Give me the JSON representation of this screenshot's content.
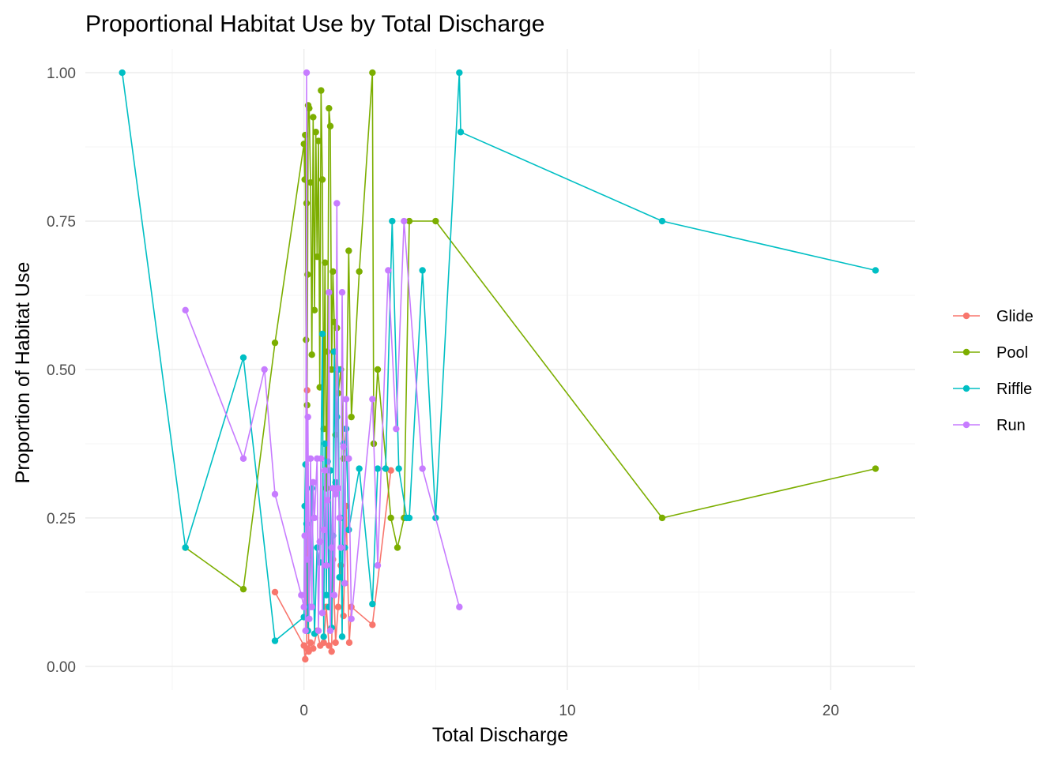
{
  "chart_data": {
    "type": "line",
    "title": "Proportional Habitat Use by Total Discharge",
    "xlabel": "Total Discharge",
    "ylabel": "Proportion of Habitat Use",
    "xlim": [
      -8.3,
      23.2
    ],
    "ylim": [
      -0.04,
      1.04
    ],
    "x_ticks": [
      0,
      10,
      20
    ],
    "x_minor_ticks": [
      -5,
      5,
      15
    ],
    "y_ticks": [
      0,
      0.25,
      0.5,
      0.75,
      1.0
    ],
    "y_tick_labels": [
      "0.00",
      "0.25",
      "0.50",
      "0.75",
      "1.00"
    ],
    "y_minor_ticks": [
      0.125,
      0.375,
      0.625,
      0.875
    ],
    "grid": true,
    "legend_position": "right",
    "series": [
      {
        "name": "Glide",
        "color": "#F8766D",
        "points": [
          [
            -1.1,
            0.125
          ],
          [
            0.0,
            0.035
          ],
          [
            0.05,
            0.012
          ],
          [
            0.1,
            0.03
          ],
          [
            0.12,
            0.465
          ],
          [
            0.18,
            0.025
          ],
          [
            0.25,
            0.04
          ],
          [
            0.35,
            0.03
          ],
          [
            0.5,
            0.06
          ],
          [
            0.62,
            0.035
          ],
          [
            0.75,
            0.04
          ],
          [
            0.85,
            0.1
          ],
          [
            0.95,
            0.035
          ],
          [
            1.05,
            0.025
          ],
          [
            1.1,
            0.18
          ],
          [
            1.2,
            0.04
          ],
          [
            1.3,
            0.1
          ],
          [
            1.4,
            0.17
          ],
          [
            1.5,
            0.085
          ],
          [
            1.6,
            0.27
          ],
          [
            1.72,
            0.04
          ],
          [
            1.8,
            0.1
          ],
          [
            2.6,
            0.07
          ],
          [
            3.3,
            0.33
          ]
        ]
      },
      {
        "name": "Pool",
        "color": "#7CAE00",
        "points": [
          [
            -4.5,
            0.2
          ],
          [
            -2.3,
            0.13
          ],
          [
            -1.1,
            0.545
          ],
          [
            0.0,
            0.88
          ],
          [
            0.03,
            0.82
          ],
          [
            0.05,
            0.895
          ],
          [
            0.08,
            0.55
          ],
          [
            0.1,
            0.78
          ],
          [
            0.12,
            0.44
          ],
          [
            0.14,
            0.66
          ],
          [
            0.16,
            0.945
          ],
          [
            0.2,
            0.94
          ],
          [
            0.25,
            0.815
          ],
          [
            0.3,
            0.525
          ],
          [
            0.35,
            0.925
          ],
          [
            0.4,
            0.6
          ],
          [
            0.45,
            0.9
          ],
          [
            0.5,
            0.69
          ],
          [
            0.55,
            0.885
          ],
          [
            0.6,
            0.47
          ],
          [
            0.65,
            0.97
          ],
          [
            0.7,
            0.82
          ],
          [
            0.75,
            0.4
          ],
          [
            0.8,
            0.68
          ],
          [
            0.85,
            0.3
          ],
          [
            0.9,
            0.53
          ],
          [
            0.95,
            0.94
          ],
          [
            1.0,
            0.91
          ],
          [
            1.05,
            0.5
          ],
          [
            1.1,
            0.665
          ],
          [
            1.15,
            0.58
          ],
          [
            1.2,
            0.39
          ],
          [
            1.25,
            0.57
          ],
          [
            1.3,
            0.46
          ],
          [
            1.4,
            0.5
          ],
          [
            1.5,
            0.35
          ],
          [
            1.6,
            0.4
          ],
          [
            1.7,
            0.7
          ],
          [
            1.8,
            0.42
          ],
          [
            2.1,
            0.665
          ],
          [
            2.6,
            1.0
          ],
          [
            2.65,
            0.375
          ],
          [
            2.8,
            0.5
          ],
          [
            3.3,
            0.25
          ],
          [
            3.55,
            0.2
          ],
          [
            3.8,
            0.25
          ],
          [
            4.0,
            0.75
          ],
          [
            5.0,
            0.75
          ],
          [
            13.6,
            0.25
          ],
          [
            21.7,
            0.333
          ]
        ]
      },
      {
        "name": "Riffle",
        "color": "#00BFC4",
        "points": [
          [
            -6.9,
            1.0
          ],
          [
            -4.5,
            0.2
          ],
          [
            -2.3,
            0.52
          ],
          [
            -1.1,
            0.043
          ],
          [
            0.0,
            0.083
          ],
          [
            0.03,
            0.27
          ],
          [
            0.06,
            0.34
          ],
          [
            0.1,
            0.24
          ],
          [
            0.15,
            0.06
          ],
          [
            0.2,
            0.1
          ],
          [
            0.3,
            0.3
          ],
          [
            0.4,
            0.055
          ],
          [
            0.5,
            0.2
          ],
          [
            0.6,
            0.175
          ],
          [
            0.7,
            0.56
          ],
          [
            0.75,
            0.05
          ],
          [
            0.8,
            0.375
          ],
          [
            0.85,
            0.12
          ],
          [
            0.9,
            0.345
          ],
          [
            0.95,
            0.1
          ],
          [
            1.0,
            0.33
          ],
          [
            1.05,
            0.065
          ],
          [
            1.1,
            0.22
          ],
          [
            1.15,
            0.53
          ],
          [
            1.2,
            0.31
          ],
          [
            1.25,
            0.42
          ],
          [
            1.3,
            0.5
          ],
          [
            1.35,
            0.15
          ],
          [
            1.4,
            0.25
          ],
          [
            1.45,
            0.05
          ],
          [
            1.5,
            0.375
          ],
          [
            1.55,
            0.2
          ],
          [
            1.6,
            0.4
          ],
          [
            1.7,
            0.23
          ],
          [
            2.1,
            0.333
          ],
          [
            2.6,
            0.105
          ],
          [
            2.8,
            0.333
          ],
          [
            3.1,
            0.333
          ],
          [
            3.35,
            0.75
          ],
          [
            3.6,
            0.333
          ],
          [
            3.9,
            0.25
          ],
          [
            4.0,
            0.25
          ],
          [
            4.5,
            0.667
          ],
          [
            5.0,
            0.25
          ],
          [
            5.9,
            1.0
          ],
          [
            5.95,
            0.9
          ],
          [
            13.6,
            0.75
          ],
          [
            21.7,
            0.667
          ]
        ]
      },
      {
        "name": "Run",
        "color": "#C77CFF",
        "points": [
          [
            -4.5,
            0.6
          ],
          [
            -2.3,
            0.35
          ],
          [
            -1.5,
            0.5
          ],
          [
            -1.1,
            0.29
          ],
          [
            -0.1,
            0.12
          ],
          [
            0.0,
            0.1
          ],
          [
            0.03,
            0.22
          ],
          [
            0.06,
            0.06
          ],
          [
            0.1,
            1.0
          ],
          [
            0.12,
            0.18
          ],
          [
            0.15,
            0.42
          ],
          [
            0.2,
            0.08
          ],
          [
            0.25,
            0.35
          ],
          [
            0.3,
            0.1
          ],
          [
            0.35,
            0.31
          ],
          [
            0.4,
            0.25
          ],
          [
            0.5,
            0.35
          ],
          [
            0.55,
            0.06
          ],
          [
            0.6,
            0.21
          ],
          [
            0.65,
            0.35
          ],
          [
            0.7,
            0.09
          ],
          [
            0.75,
            0.23
          ],
          [
            0.8,
            0.33
          ],
          [
            0.85,
            0.17
          ],
          [
            0.9,
            0.28
          ],
          [
            0.95,
            0.63
          ],
          [
            1.0,
            0.06
          ],
          [
            1.05,
            0.2
          ],
          [
            1.1,
            0.3
          ],
          [
            1.15,
            0.12
          ],
          [
            1.2,
            0.29
          ],
          [
            1.25,
            0.78
          ],
          [
            1.3,
            0.3
          ],
          [
            1.35,
            0.25
          ],
          [
            1.4,
            0.2
          ],
          [
            1.45,
            0.63
          ],
          [
            1.5,
            0.37
          ],
          [
            1.55,
            0.14
          ],
          [
            1.6,
            0.45
          ],
          [
            1.7,
            0.35
          ],
          [
            1.8,
            0.08
          ],
          [
            2.6,
            0.45
          ],
          [
            2.8,
            0.17
          ],
          [
            3.2,
            0.667
          ],
          [
            3.5,
            0.4
          ],
          [
            3.8,
            0.75
          ],
          [
            4.5,
            0.333
          ],
          [
            5.9,
            0.1
          ]
        ]
      }
    ]
  }
}
